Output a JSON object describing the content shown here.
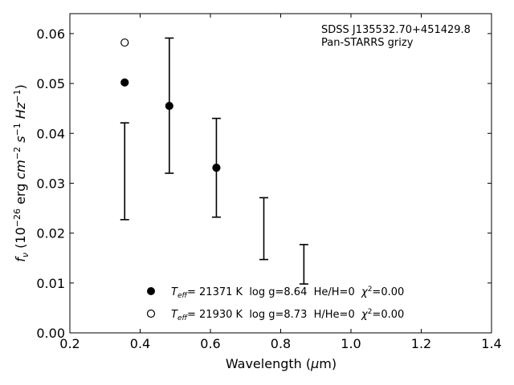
{
  "chart_data": {
    "type": "scatter",
    "title": "",
    "annotation_lines": [
      "SDSS J135532.70+451429.8",
      "Pan-STARRS grizy"
    ],
    "xlabel": {
      "pre": "Wavelength (",
      "mu": "μ",
      "post": "m)"
    },
    "ylabel": "f_ν (10^−26 erg cm^−2 s^−1 Hz^−1)",
    "xlim": [
      0.2,
      1.4
    ],
    "ylim": [
      0.0,
      0.064
    ],
    "xticks": [
      "0.2",
      "0.4",
      "0.6",
      "0.8",
      "1.0",
      "1.2",
      "1.4"
    ],
    "yticks": [
      "0.00",
      "0.01",
      "0.02",
      "0.03",
      "0.04",
      "0.05",
      "0.06"
    ],
    "grid": false,
    "legend_position": "lower-center",
    "observed_errorbars": [
      {
        "x": 0.356,
        "low": 0.0227,
        "high": 0.0421
      },
      {
        "x": 0.483,
        "low": 0.032,
        "high": 0.0591
      },
      {
        "x": 0.617,
        "low": 0.0232,
        "high": 0.043
      },
      {
        "x": 0.752,
        "low": 0.0147,
        "high": 0.0271
      },
      {
        "x": 0.866,
        "low": 0.0098,
        "high": 0.0177
      }
    ],
    "series": [
      {
        "marker": "filled-circle",
        "label": "T_eff= 21371 K  log g=8.64  He/H=0  χ²=0.00",
        "points": [
          {
            "x": 0.356,
            "y": 0.0502
          },
          {
            "x": 0.483,
            "y": 0.0455
          },
          {
            "x": 0.617,
            "y": 0.0331
          }
        ]
      },
      {
        "marker": "open-circle",
        "label": "T_eff= 21930 K  log g=8.73  H/He=0  χ²=0.00",
        "points": [
          {
            "x": 0.356,
            "y": 0.0582
          }
        ]
      }
    ],
    "legend": [
      {
        "marker": "filled-circle",
        "teff": "21371",
        "rest": " K  log g=8.64  He/H=0  ",
        "chi": "0.00"
      },
      {
        "marker": "open-circle",
        "teff": "21930",
        "rest": " K  log g=8.73  H/He=0  ",
        "chi": "0.00"
      }
    ]
  }
}
